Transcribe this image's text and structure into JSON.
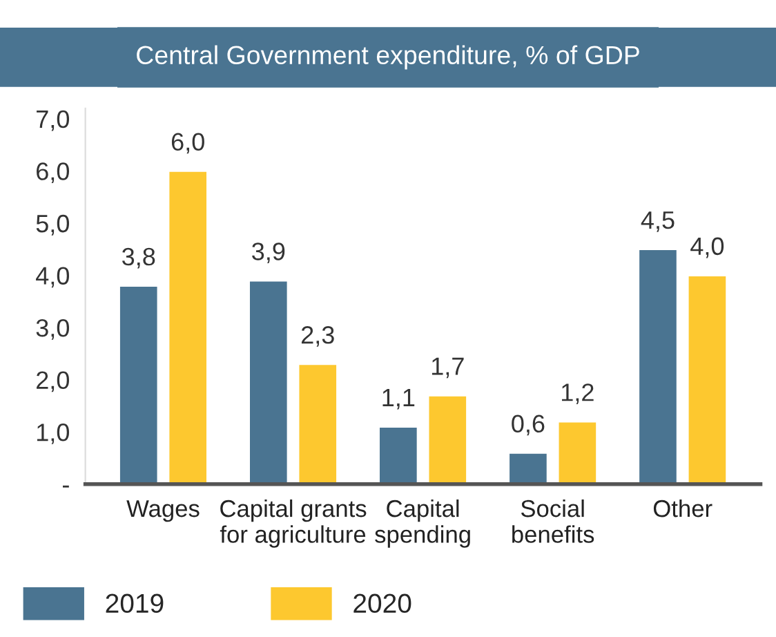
{
  "chart_data": {
    "type": "bar",
    "title": "Central Government expenditure, % of GDP",
    "categories": [
      "Wages",
      "Capital grants\nfor agriculture",
      "Capital\nspending",
      "Social\nbenefits",
      "Other"
    ],
    "series": [
      {
        "name": "2019",
        "color": "#4a7491",
        "values": [
          3.8,
          3.9,
          1.1,
          0.6,
          4.5
        ],
        "value_labels": [
          "3,8",
          "3,9",
          "1,1",
          "0,6",
          "4,5"
        ]
      },
      {
        "name": "2020",
        "color": "#fdc82f",
        "values": [
          6.0,
          2.3,
          1.7,
          1.2,
          4.0
        ],
        "value_labels": [
          "6,0",
          "2,3",
          "1,7",
          "1,2",
          "4,0"
        ]
      }
    ],
    "ylim": [
      0,
      7.2
    ],
    "yticks": [
      {
        "value": 0,
        "label": "-"
      },
      {
        "value": 1,
        "label": "1,0"
      },
      {
        "value": 2,
        "label": "2,0"
      },
      {
        "value": 3,
        "label": "3,0"
      },
      {
        "value": 4,
        "label": "4,0"
      },
      {
        "value": 5,
        "label": "5,0"
      },
      {
        "value": 6,
        "label": "6,0"
      },
      {
        "value": 7,
        "label": "7,0"
      }
    ],
    "grid": false,
    "legend": "bottom"
  }
}
